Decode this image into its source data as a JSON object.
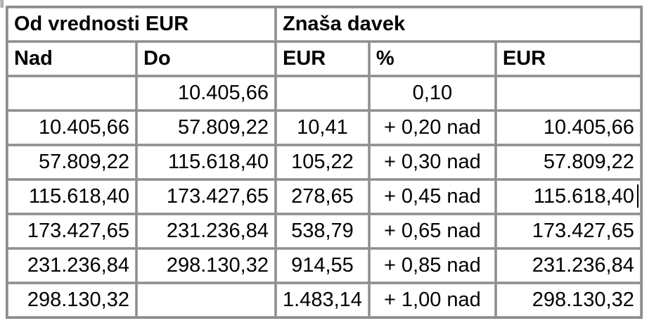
{
  "table": {
    "title_group_left": "Od vrednosti EUR",
    "title_group_right": "Znaša davek",
    "columns": [
      "Nad",
      "Do",
      "EUR",
      "%",
      "EUR"
    ],
    "rows": [
      [
        "",
        "10.405,66",
        "",
        "0,10",
        ""
      ],
      [
        "10.405,66",
        "57.809,22",
        "10,41",
        "+ 0,20 nad",
        "10.405,66"
      ],
      [
        "57.809,22",
        "115.618,40",
        "105,22",
        "+ 0,30 nad",
        "57.809,22"
      ],
      [
        "115.618,40",
        "173.427,65",
        "278,65",
        "+ 0,45 nad",
        "115.618,40"
      ],
      [
        "173.427,65",
        "231.236,84",
        "538,79",
        "+ 0,65 nad",
        "173.427,65"
      ],
      [
        "231.236,84",
        "298.130,32",
        "914,55",
        "+ 0,85 nad",
        "231.236,84"
      ],
      [
        "298.130,32",
        "",
        "1.483,14",
        "+ 1,00 nad",
        "298.130,32"
      ]
    ],
    "colors": {
      "outer_border": "#8d8d8d",
      "cell_border": "#a8a8a8",
      "text": "#000000",
      "background": "#ffffff"
    },
    "caret_cell": {
      "row_value": "115.618,40",
      "column": "EUR"
    }
  }
}
